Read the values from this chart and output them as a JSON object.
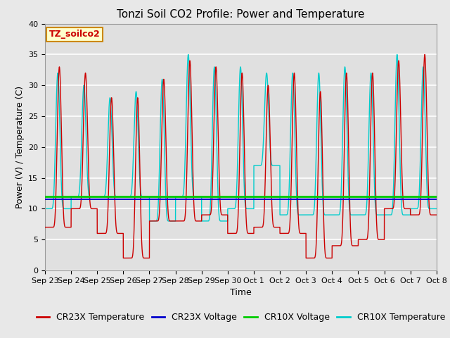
{
  "title": "Tonzi Soil CO2 Profile: Power and Temperature",
  "xlabel": "Time",
  "ylabel": "Power (V) / Temperature (C)",
  "ylim": [
    0,
    40
  ],
  "ytick_values": [
    0,
    5,
    10,
    15,
    20,
    25,
    30,
    35,
    40
  ],
  "xtick_labels": [
    "Sep 23",
    "Sep 24",
    "Sep 25",
    "Sep 26",
    "Sep 27",
    "Sep 28",
    "Sep 29",
    "Sep 30",
    "Oct 1",
    "Oct 2",
    "Oct 3",
    "Oct 4",
    "Oct 5",
    "Oct 6",
    "Oct 7",
    "Oct 8"
  ],
  "cr23x_voltage": 11.5,
  "cr10x_voltage": 12.0,
  "cr23x_color": "#cc0000",
  "cr10x_color": "#00cccc",
  "cr23x_voltage_color": "#0000cc",
  "cr10x_voltage_color": "#00cc00",
  "annotation_text": "TZ_soilco2",
  "annotation_bg": "#ffffcc",
  "annotation_border": "#cc8800",
  "title_fontsize": 11,
  "label_fontsize": 9,
  "tick_fontsize": 8,
  "legend_fontsize": 9,
  "background_color": "#e8e8e8",
  "plot_bg_color": "#e0e0e0",
  "grid_color": "#ffffff",
  "n_days": 15,
  "peak_maxima": [
    33,
    32,
    28,
    28,
    31,
    34,
    33,
    32,
    30,
    32,
    29,
    32,
    32,
    34,
    35
  ],
  "peak_minima": [
    7,
    10,
    6,
    2,
    8,
    8,
    9,
    6,
    7,
    6,
    2,
    4,
    5,
    10,
    9
  ],
  "cr10x_peak_maxima": [
    32,
    30,
    28,
    29,
    31,
    35,
    33,
    33,
    32,
    32,
    32,
    33,
    32,
    35,
    33
  ],
  "cr10x_peak_minima": [
    10,
    12,
    12,
    12,
    8,
    12,
    8,
    10,
    17,
    9,
    9,
    9,
    9,
    9,
    10
  ]
}
